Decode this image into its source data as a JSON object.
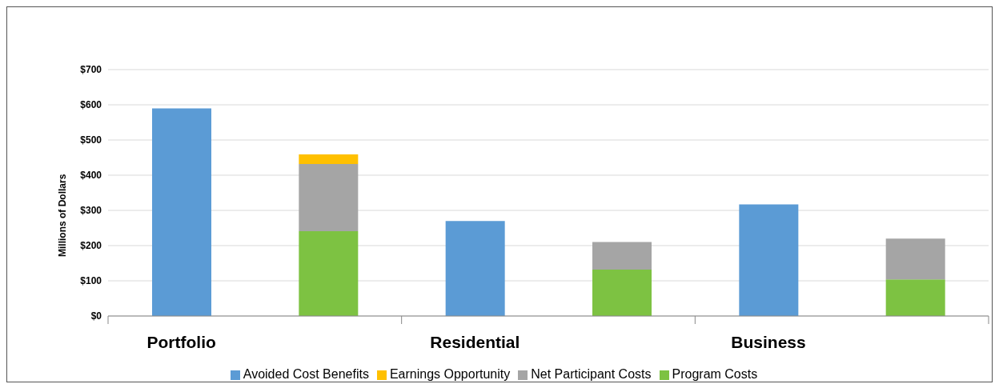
{
  "chart_data": {
    "type": "bar",
    "ylabel": "Millions of Dollars",
    "categories": [
      "Portfolio",
      null,
      "Residential",
      null,
      "Business",
      null
    ],
    "stacked": true,
    "ylim": [
      0,
      700
    ],
    "yticks": [
      {
        "value": 0,
        "label": "$0"
      },
      {
        "value": 100,
        "label": "$100"
      },
      {
        "value": 200,
        "label": "$200"
      },
      {
        "value": 300,
        "label": "$300"
      },
      {
        "value": 400,
        "label": "$400"
      },
      {
        "value": 500,
        "label": "$500"
      },
      {
        "value": 600,
        "label": "$600"
      },
      {
        "value": 700,
        "label": "$700"
      }
    ],
    "grid": "y",
    "legend": "bottom",
    "series": [
      {
        "name": "Avoided Cost Benefits",
        "color": "#5b9bd5",
        "values": [
          590,
          null,
          270,
          null,
          317,
          null
        ]
      },
      {
        "name": "Program Costs",
        "color": "#7dc242",
        "values": [
          null,
          241,
          null,
          132,
          null,
          104
        ]
      },
      {
        "name": "Net Participant Costs",
        "color": "#a5a5a5",
        "values": [
          null,
          191,
          null,
          78,
          null,
          116
        ]
      },
      {
        "name": "Earnings Opportunity",
        "color": "#ffc000",
        "values": [
          null,
          27,
          null,
          null,
          null,
          null
        ]
      }
    ]
  }
}
